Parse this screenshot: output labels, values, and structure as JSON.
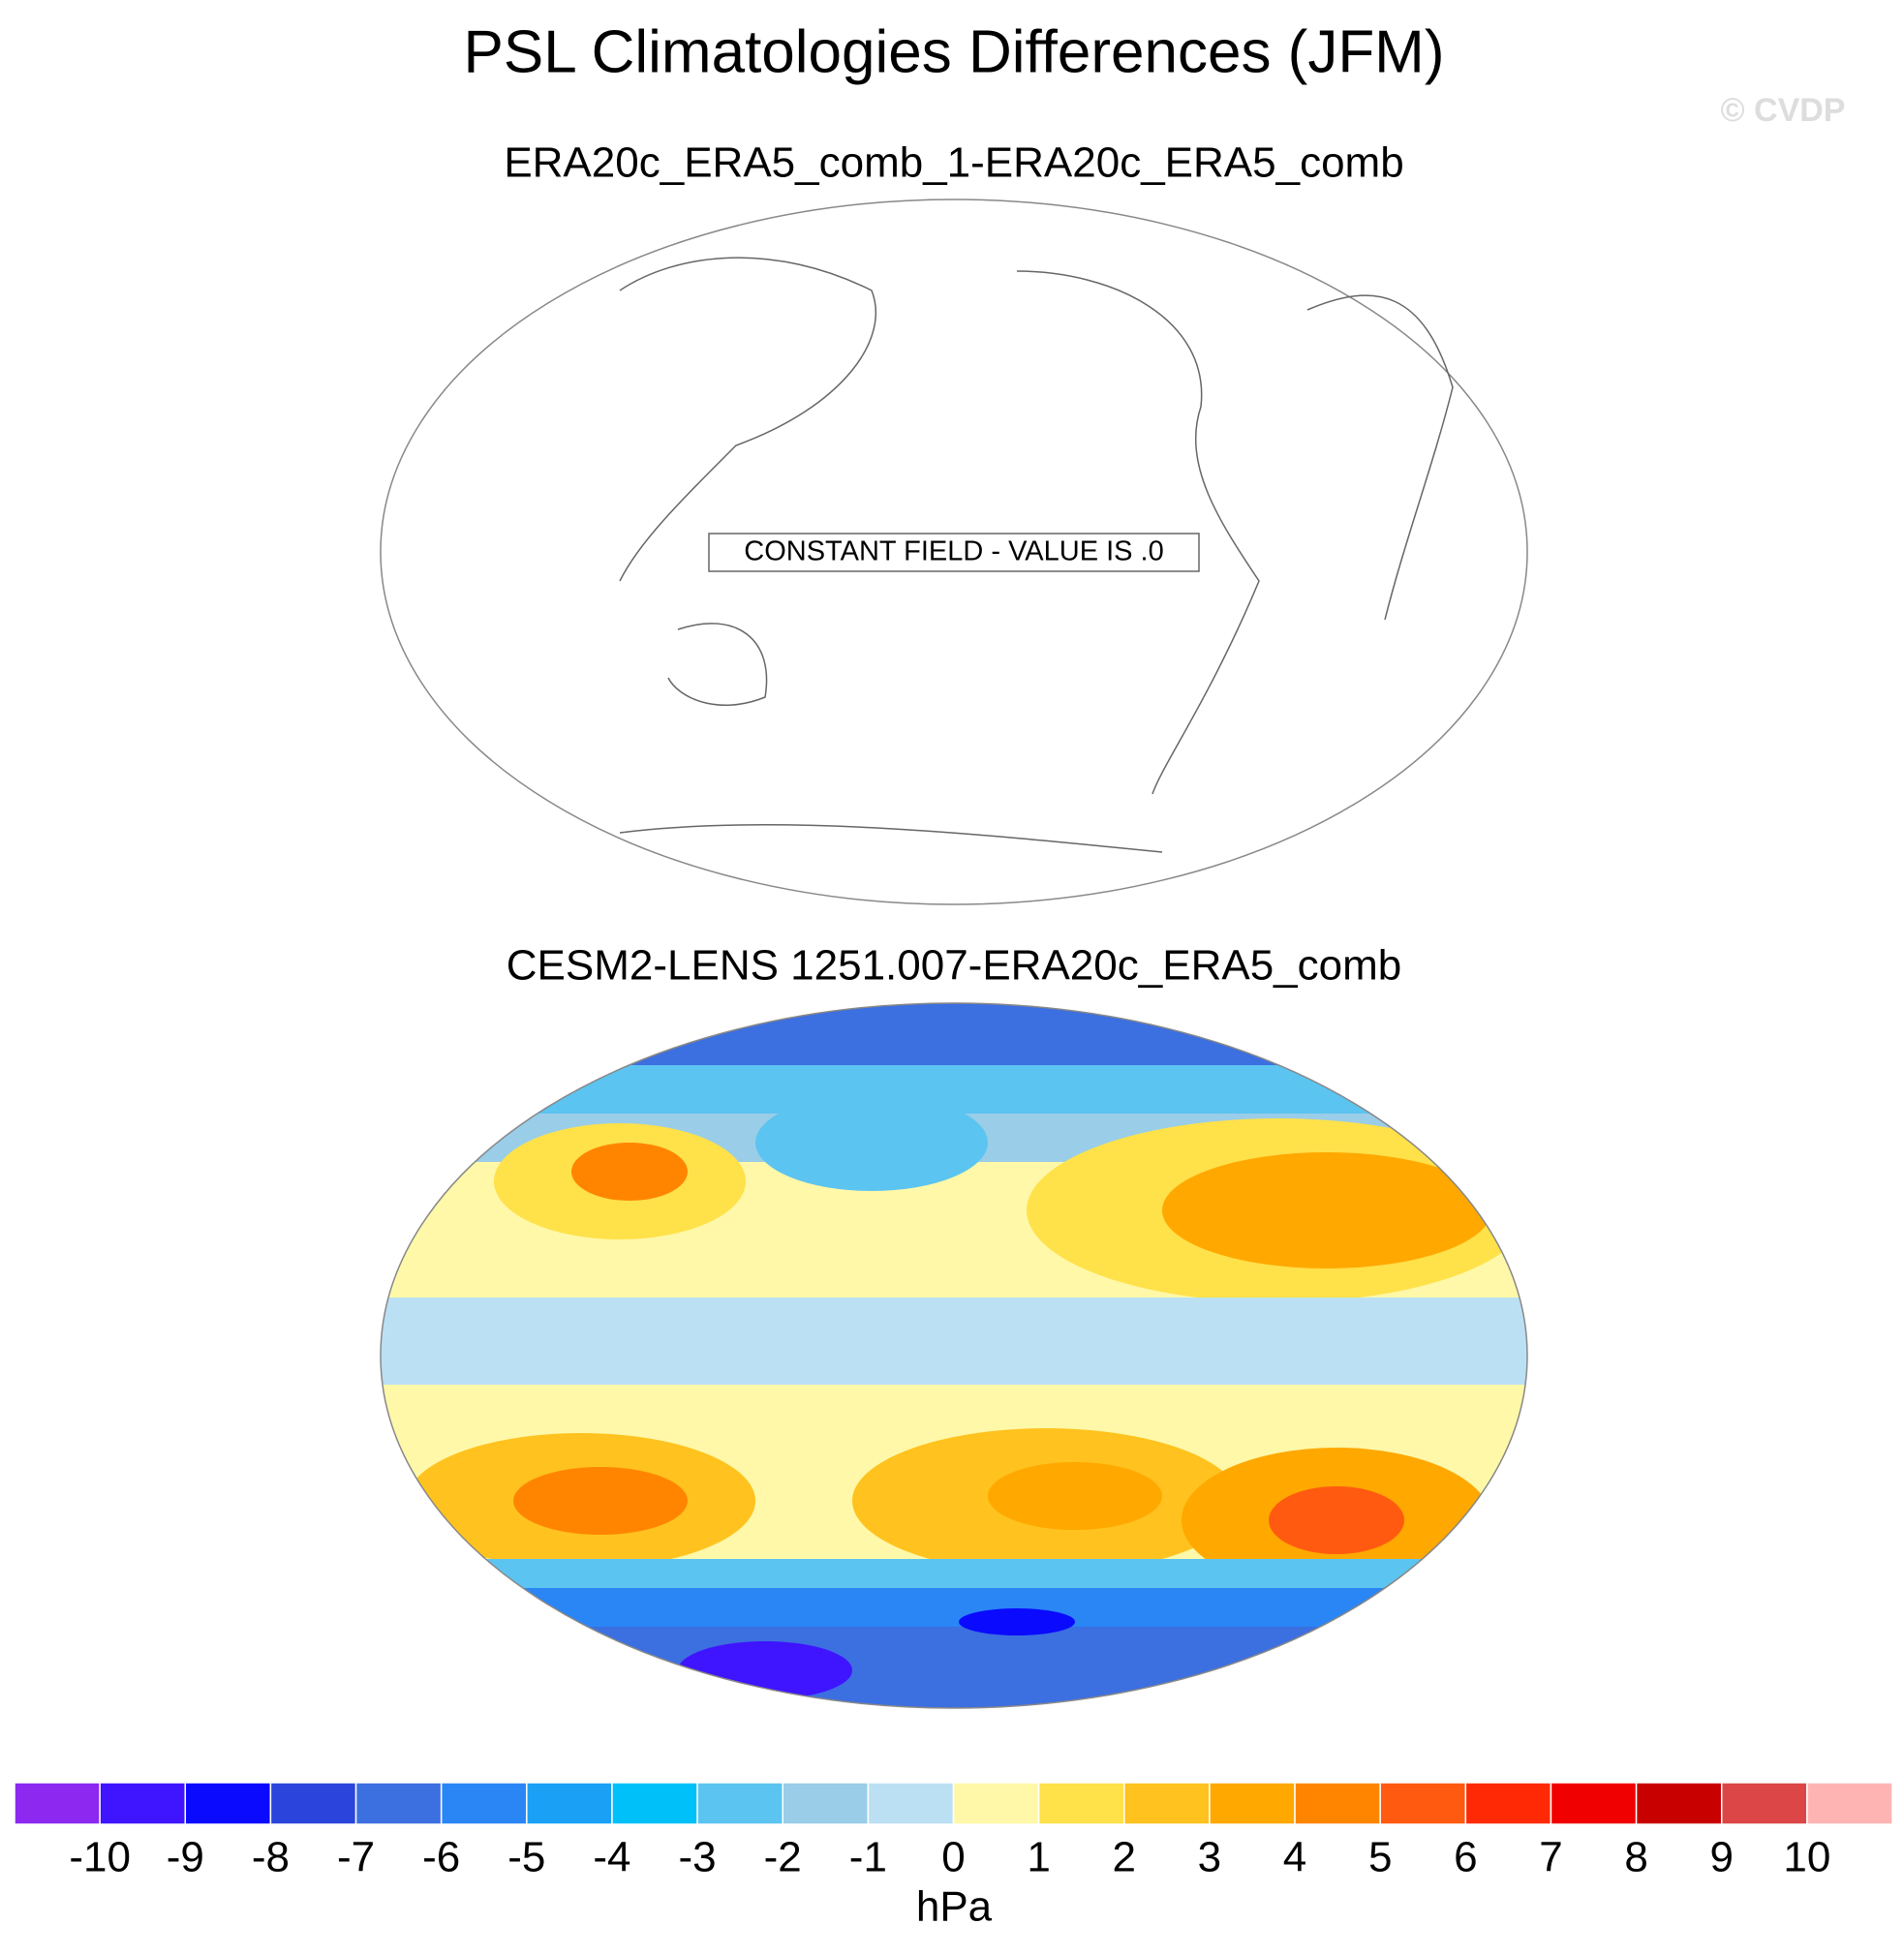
{
  "chart_data": {
    "type": "map-panels",
    "title": "PSL Climatologies Differences (JFM)",
    "watermark": "© CVDP",
    "panels": [
      {
        "title": "ERA20c_ERA5_comb_1-ERA20c_ERA5_comb",
        "note": "CONSTANT FIELD - VALUE IS .0"
      },
      {
        "title": "CESM2-LENS 1251.007-ERA20c_ERA5_comb"
      }
    ],
    "colorbar": {
      "levels": [
        -10,
        -9,
        -8,
        -7,
        -6,
        -5,
        -4,
        -3,
        -2,
        -1,
        0,
        1,
        2,
        3,
        4,
        5,
        6,
        7,
        8,
        9,
        10
      ],
      "colors": [
        "#8C28F0",
        "#3F14FF",
        "#0A0AFF",
        "#2B45DC",
        "#3C6FE0",
        "#2A85F5",
        "#1AA0F5",
        "#00C0FA",
        "#5CC4F0",
        "#9ACDE8",
        "#BBE0F4",
        "#FFF8A8",
        "#FFE14A",
        "#FFC21E",
        "#FFA800",
        "#FF8500",
        "#FF5A10",
        "#FF2A05",
        "#F00000",
        "#C80000",
        "#DC4646",
        "#FFB4B4"
      ],
      "unit": "hPa"
    }
  }
}
